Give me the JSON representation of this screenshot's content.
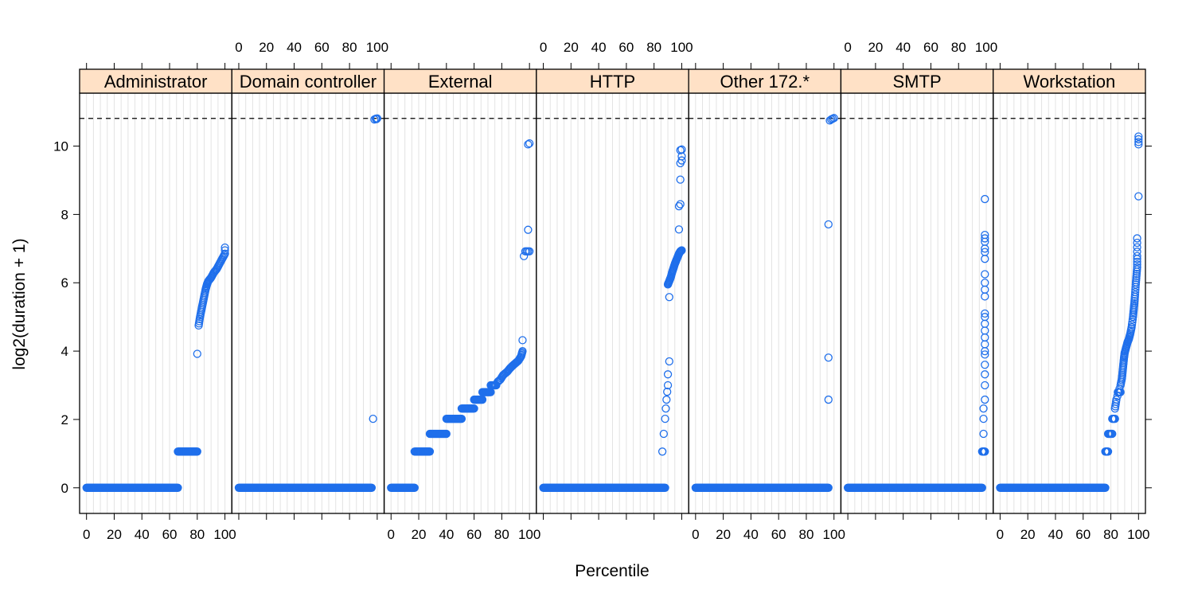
{
  "chart_data": {
    "type": "scatter",
    "layout": "lattice-panels",
    "xlabel": "Percentile",
    "ylabel": "log2(duration + 1)",
    "xlim": [
      -5,
      105
    ],
    "ylim": [
      -0.75,
      11.55
    ],
    "x_ticks": [
      0,
      20,
      40,
      60,
      80,
      100
    ],
    "y_ticks": [
      0,
      2,
      4,
      6,
      8,
      10
    ],
    "reference_line": {
      "y": 10.81,
      "style": "dashed"
    },
    "grid": "vertical",
    "point_color": "#1f6feb",
    "strip_color": "#ffe1c6",
    "panels": [
      {
        "name": "Administrator",
        "segments": [
          {
            "x_from": 0,
            "x_to": 66,
            "y": 0
          },
          {
            "x_from": 66,
            "x_to": 80,
            "y": 1.06
          }
        ],
        "curve": [
          [
            81,
            4.75
          ],
          [
            82,
            5.0
          ],
          [
            83,
            5.2
          ],
          [
            84,
            5.4
          ],
          [
            85,
            5.6
          ],
          [
            86,
            5.8
          ],
          [
            87,
            5.95
          ],
          [
            88,
            6.05
          ],
          [
            90,
            6.15
          ],
          [
            92,
            6.3
          ],
          [
            94,
            6.4
          ],
          [
            96,
            6.55
          ],
          [
            98,
            6.7
          ],
          [
            100,
            6.85
          ]
        ],
        "points": [
          [
            80,
            3.92
          ],
          [
            100,
            7.03
          ],
          [
            100,
            6.95
          ]
        ]
      },
      {
        "name": "Domain controller",
        "segments": [
          {
            "x_from": 0,
            "x_to": 96,
            "y": 0
          }
        ],
        "curve": [],
        "points": [
          [
            97,
            2.02
          ],
          [
            98,
            10.78
          ],
          [
            99,
            10.8
          ],
          [
            100,
            10.81
          ],
          [
            99.5,
            10.79
          ]
        ]
      },
      {
        "name": "External",
        "segments": [
          {
            "x_from": 0,
            "x_to": 17,
            "y": 0
          },
          {
            "x_from": 17,
            "x_to": 28,
            "y": 1.06
          },
          {
            "x_from": 28,
            "x_to": 40,
            "y": 1.58
          },
          {
            "x_from": 40,
            "x_to": 51,
            "y": 2.02
          },
          {
            "x_from": 51,
            "x_to": 60,
            "y": 2.32
          },
          {
            "x_from": 60,
            "x_to": 66,
            "y": 2.58
          },
          {
            "x_from": 66,
            "x_to": 72,
            "y": 2.8
          },
          {
            "x_from": 72,
            "x_to": 76,
            "y": 3.0
          }
        ],
        "curve": [
          [
            77,
            3.1
          ],
          [
            79,
            3.17
          ],
          [
            81,
            3.3
          ],
          [
            84,
            3.4
          ],
          [
            86,
            3.5
          ],
          [
            88,
            3.58
          ],
          [
            90,
            3.65
          ],
          [
            92,
            3.72
          ],
          [
            94,
            3.85
          ],
          [
            95,
            4.0
          ]
        ],
        "points": [
          [
            95,
            4.32
          ],
          [
            96,
            6.78
          ],
          [
            97,
            6.92
          ],
          [
            98,
            6.92
          ],
          [
            99,
            6.92
          ],
          [
            100,
            6.92
          ],
          [
            99,
            7.55
          ],
          [
            99,
            10.05
          ],
          [
            100,
            10.08
          ]
        ]
      },
      {
        "name": "HTTP",
        "segments": [
          {
            "x_from": 0,
            "x_to": 88,
            "y": 0
          }
        ],
        "curve": [
          [
            90,
            5.95
          ],
          [
            91,
            6.05
          ],
          [
            92,
            6.15
          ],
          [
            93,
            6.3
          ],
          [
            94,
            6.42
          ],
          [
            95,
            6.55
          ],
          [
            96,
            6.65
          ],
          [
            97,
            6.75
          ],
          [
            98,
            6.85
          ],
          [
            99,
            6.92
          ],
          [
            100,
            6.95
          ]
        ],
        "points": [
          [
            86,
            1.06
          ],
          [
            87,
            1.58
          ],
          [
            88,
            2.02
          ],
          [
            88.5,
            2.32
          ],
          [
            89,
            2.58
          ],
          [
            89.5,
            2.81
          ],
          [
            90,
            3.0
          ],
          [
            90,
            3.32
          ],
          [
            91,
            3.7
          ],
          [
            91,
            5.58
          ],
          [
            98,
            7.56
          ],
          [
            98,
            8.24
          ],
          [
            99,
            8.3
          ],
          [
            99,
            9.02
          ],
          [
            99,
            9.5
          ],
          [
            100,
            9.58
          ],
          [
            100,
            9.7
          ],
          [
            100,
            9.9
          ],
          [
            99,
            9.88
          ]
        ]
      },
      {
        "name": "Other 172.*",
        "segments": [
          {
            "x_from": 0,
            "x_to": 96,
            "y": 0
          }
        ],
        "curve": [],
        "points": [
          [
            96,
            2.58
          ],
          [
            96,
            3.81
          ],
          [
            96,
            7.71
          ],
          [
            97,
            10.75
          ],
          [
            98,
            10.78
          ],
          [
            99,
            10.8
          ],
          [
            100,
            10.82
          ]
        ]
      },
      {
        "name": "SMTP",
        "segments": [
          {
            "x_from": 0,
            "x_to": 97,
            "y": 0
          },
          {
            "x_from": 97,
            "x_to": 99,
            "y": 1.06
          }
        ],
        "curve": [],
        "points": [
          [
            98,
            1.58
          ],
          [
            98,
            2.02
          ],
          [
            98,
            2.32
          ],
          [
            99,
            2.58
          ],
          [
            99,
            3.0
          ],
          [
            99,
            3.32
          ],
          [
            99,
            3.6
          ],
          [
            99,
            3.9
          ],
          [
            99,
            4.0
          ],
          [
            99,
            4.2
          ],
          [
            99,
            4.4
          ],
          [
            99,
            4.6
          ],
          [
            99,
            4.8
          ],
          [
            99,
            5.0
          ],
          [
            99,
            5.1
          ],
          [
            99,
            5.6
          ],
          [
            99,
            5.8
          ],
          [
            99,
            6.0
          ],
          [
            99,
            6.25
          ],
          [
            99,
            6.7
          ],
          [
            99,
            6.9
          ],
          [
            99,
            7.0
          ],
          [
            99,
            7.2
          ],
          [
            99,
            7.3
          ],
          [
            99,
            7.4
          ],
          [
            99,
            8.45
          ]
        ]
      },
      {
        "name": "Workstation",
        "segments": [
          {
            "x_from": 0,
            "x_to": 76,
            "y": 0
          },
          {
            "x_from": 76,
            "x_to": 78,
            "y": 1.06
          },
          {
            "x_from": 78,
            "x_to": 81,
            "y": 1.58
          },
          {
            "x_from": 81,
            "x_to": 83,
            "y": 2.02
          },
          {
            "x_from": 85,
            "x_to": 87,
            "y": 2.8
          }
        ],
        "curve": [
          [
            83,
            2.32
          ],
          [
            84,
            2.58
          ],
          [
            87,
            3.0
          ],
          [
            88,
            3.2
          ],
          [
            88.5,
            3.4
          ],
          [
            89,
            3.6
          ],
          [
            89.5,
            3.8
          ],
          [
            90,
            3.95
          ],
          [
            91,
            4.1
          ],
          [
            92,
            4.25
          ],
          [
            93,
            4.35
          ],
          [
            94,
            4.5
          ],
          [
            95,
            4.7
          ],
          [
            96,
            5.0
          ],
          [
            96.5,
            5.2
          ],
          [
            97,
            5.4
          ],
          [
            97.5,
            5.65
          ],
          [
            98,
            5.95
          ],
          [
            98.5,
            6.2
          ],
          [
            99,
            6.45
          ],
          [
            99,
            6.78
          ],
          [
            99,
            7.3
          ]
        ],
        "points": [
          [
            100,
            8.53
          ],
          [
            100,
            10.05
          ],
          [
            100,
            10.12
          ],
          [
            100,
            10.2
          ],
          [
            100,
            10.28
          ]
        ]
      }
    ]
  }
}
